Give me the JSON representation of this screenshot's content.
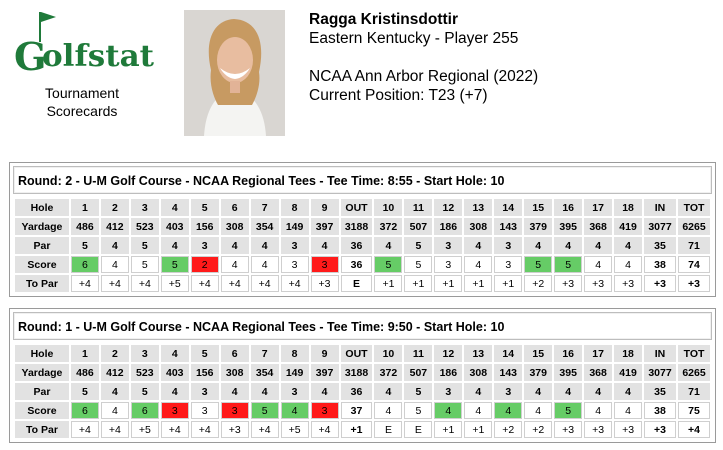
{
  "logo": {
    "brand": "Golfstat",
    "caption_line1": "Tournament",
    "caption_line2": "Scorecards"
  },
  "player": {
    "name": "Ragga Kristinsdottir",
    "team_line": "Eastern Kentucky - Player 255",
    "event": "NCAA Ann Arbor Regional (2022)",
    "position": "Current Position: T23 (+7)"
  },
  "colors": {
    "birdie": "#66cc66",
    "bogey": "#ff1a1a",
    "header_cell": "#e2e2e2"
  },
  "rounds": [
    {
      "title": "Round: 2 - U-M Golf Course - NCAA Regional Tees - Tee Time: 8:55 - Start Hole: 10",
      "hole": [
        "Hole",
        "1",
        "2",
        "3",
        "4",
        "5",
        "6",
        "7",
        "8",
        "9",
        "OUT",
        "10",
        "11",
        "12",
        "13",
        "14",
        "15",
        "16",
        "17",
        "18",
        "IN",
        "TOT"
      ],
      "yardage": [
        "Yardage",
        "486",
        "412",
        "523",
        "403",
        "156",
        "308",
        "354",
        "149",
        "397",
        "3188",
        "372",
        "507",
        "186",
        "308",
        "143",
        "379",
        "395",
        "368",
        "419",
        "3077",
        "6265"
      ],
      "par": [
        "Par",
        "5",
        "4",
        "5",
        "4",
        "3",
        "4",
        "4",
        "3",
        "4",
        "36",
        "4",
        "5",
        "3",
        "4",
        "3",
        "4",
        "4",
        "4",
        "4",
        "35",
        "71"
      ],
      "score": [
        "Score",
        "6",
        "4",
        "5",
        "5",
        "2",
        "4",
        "4",
        "3",
        "3",
        "36",
        "5",
        "5",
        "3",
        "4",
        "3",
        "5",
        "5",
        "4",
        "4",
        "38",
        "74"
      ],
      "topar": [
        "To Par",
        "+4",
        "+4",
        "+4",
        "+5",
        "+4",
        "+4",
        "+4",
        "+4",
        "+3",
        "E",
        "+1",
        "+1",
        "+1",
        "+1",
        "+1",
        "+2",
        "+3",
        "+3",
        "+3",
        "+3",
        "+3"
      ]
    },
    {
      "title": "Round: 1 - U-M Golf Course - NCAA Regional Tees - Tee Time: 9:50 - Start Hole: 10",
      "hole": [
        "Hole",
        "1",
        "2",
        "3",
        "4",
        "5",
        "6",
        "7",
        "8",
        "9",
        "OUT",
        "10",
        "11",
        "12",
        "13",
        "14",
        "15",
        "16",
        "17",
        "18",
        "IN",
        "TOT"
      ],
      "yardage": [
        "Yardage",
        "486",
        "412",
        "523",
        "403",
        "156",
        "308",
        "354",
        "149",
        "397",
        "3188",
        "372",
        "507",
        "186",
        "308",
        "143",
        "379",
        "395",
        "368",
        "419",
        "3077",
        "6265"
      ],
      "par": [
        "Par",
        "5",
        "4",
        "5",
        "4",
        "3",
        "4",
        "4",
        "3",
        "4",
        "36",
        "4",
        "5",
        "3",
        "4",
        "3",
        "4",
        "4",
        "4",
        "4",
        "35",
        "71"
      ],
      "score": [
        "Score",
        "6",
        "4",
        "6",
        "3",
        "3",
        "3",
        "5",
        "4",
        "3",
        "37",
        "4",
        "5",
        "4",
        "4",
        "4",
        "4",
        "5",
        "4",
        "4",
        "38",
        "75"
      ],
      "topar": [
        "To Par",
        "+4",
        "+4",
        "+5",
        "+4",
        "+4",
        "+3",
        "+4",
        "+5",
        "+4",
        "+1",
        "E",
        "E",
        "+1",
        "+1",
        "+2",
        "+2",
        "+3",
        "+3",
        "+3",
        "+3",
        "+4"
      ]
    }
  ]
}
